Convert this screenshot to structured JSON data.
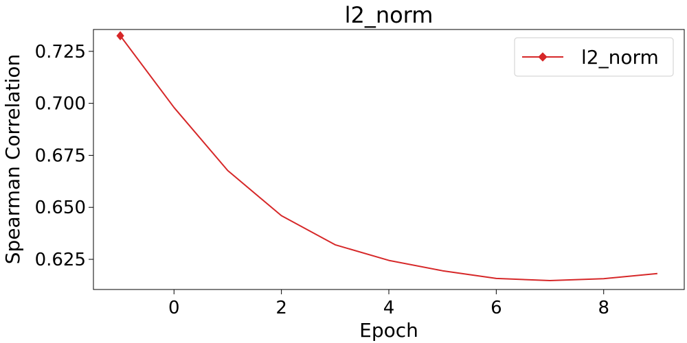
{
  "chart_data": {
    "type": "line",
    "title": "l2_norm",
    "xlabel": "Epoch",
    "ylabel": "Spearman Correlation",
    "xlim": [
      -1.5,
      9.5
    ],
    "ylim": [
      0.6105,
      0.7355
    ],
    "xticks": [
      0,
      2,
      4,
      6,
      8
    ],
    "yticks": [
      0.625,
      0.65,
      0.675,
      0.7,
      0.725
    ],
    "ytick_labels": [
      "0.625",
      "0.650",
      "0.675",
      "0.700",
      "0.725"
    ],
    "xtick_labels": [
      "0",
      "2",
      "4",
      "6",
      "8"
    ],
    "grid": false,
    "legend_position": "top-right",
    "series": [
      {
        "name": "l2_norm",
        "color": "#d62728",
        "marker": "diamond",
        "marker_indices": [
          0
        ],
        "x": [
          -1,
          0,
          1,
          2,
          3,
          4,
          5,
          6,
          7,
          8,
          9
        ],
        "y": [
          0.7325,
          0.698,
          0.6677,
          0.646,
          0.632,
          0.6245,
          0.6195,
          0.6158,
          0.6148,
          0.6157,
          0.6182
        ]
      }
    ]
  }
}
